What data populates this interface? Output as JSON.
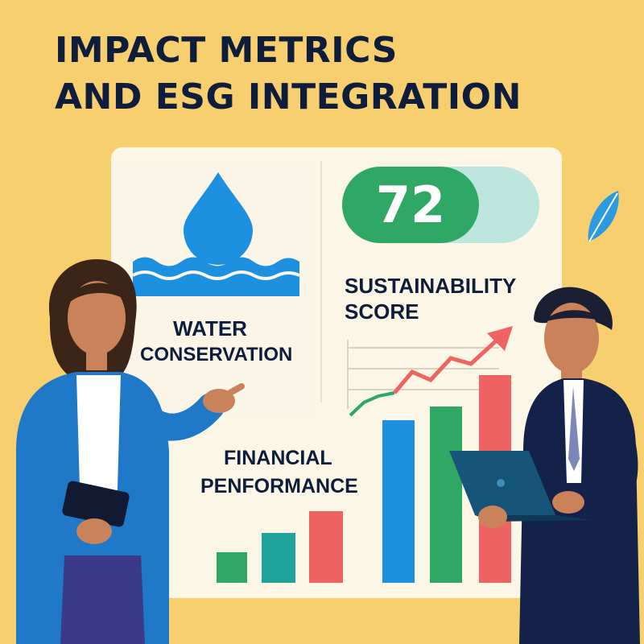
{
  "title": {
    "line1": "IMPACT METRICS",
    "line2": "AND ESG INTEGRATION"
  },
  "water": {
    "line1": "WATER",
    "line2": "CONSERVATION"
  },
  "sustainability": {
    "score": "72",
    "line1": "SUSTAINABILITY",
    "line2": "SCORE"
  },
  "financial": {
    "line1": "FINANCIAL",
    "line2": "PENFORMANCE"
  },
  "icons": [
    "water-drop-icon",
    "water-waves-icon",
    "leaf-icon",
    "trend-arrow-icon",
    "laptop-icon",
    "tablet-icon"
  ],
  "colors": {
    "background": "#F8CF6E",
    "navy": "#0F1D3D",
    "blue": "#1E90E0",
    "green": "#2FA765",
    "teal": "#1FA39A",
    "red": "#F06363"
  }
}
